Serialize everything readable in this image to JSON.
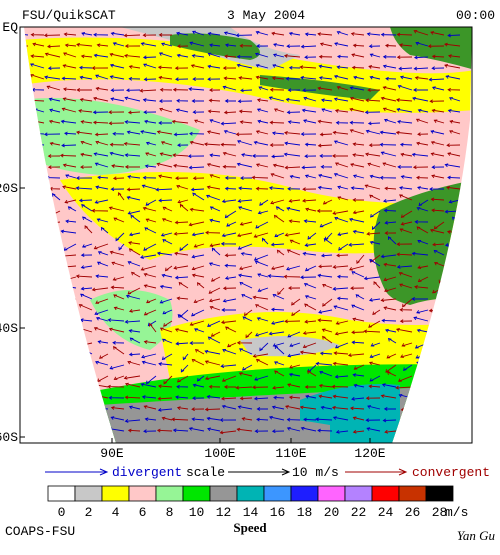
{
  "header": {
    "left": "FSU/QuikSCAT",
    "center": "3 May 2004",
    "right": "00:00"
  },
  "lat_labels": [
    "EQ",
    "20S",
    "40S",
    "60S"
  ],
  "lon_labels": [
    "90E",
    "100E",
    "110E",
    "120E"
  ],
  "scale": {
    "divergent": "divergent",
    "scale": "scale",
    "reference": "10 m/s",
    "convergent": "convergent"
  },
  "colorbar": {
    "labels": [
      "0",
      "2",
      "4",
      "6",
      "8",
      "10",
      "12",
      "14",
      "16",
      "18",
      "20",
      "22",
      "24",
      "26",
      "28"
    ],
    "colors": [
      "#ffffff",
      "#c8c8c8",
      "#ffff00",
      "#ffc8c8",
      "#96f596",
      "#00e600",
      "#969696",
      "#00b4b4",
      "#3c96ff",
      "#1e1eff",
      "#ff64ff",
      "#b482ff",
      "#ff0000",
      "#c83200",
      "#000000"
    ],
    "unit": "m/s",
    "title": "Speed"
  },
  "footer": {
    "left": "COAPS-FSU",
    "right": "Yan Gu"
  }
}
